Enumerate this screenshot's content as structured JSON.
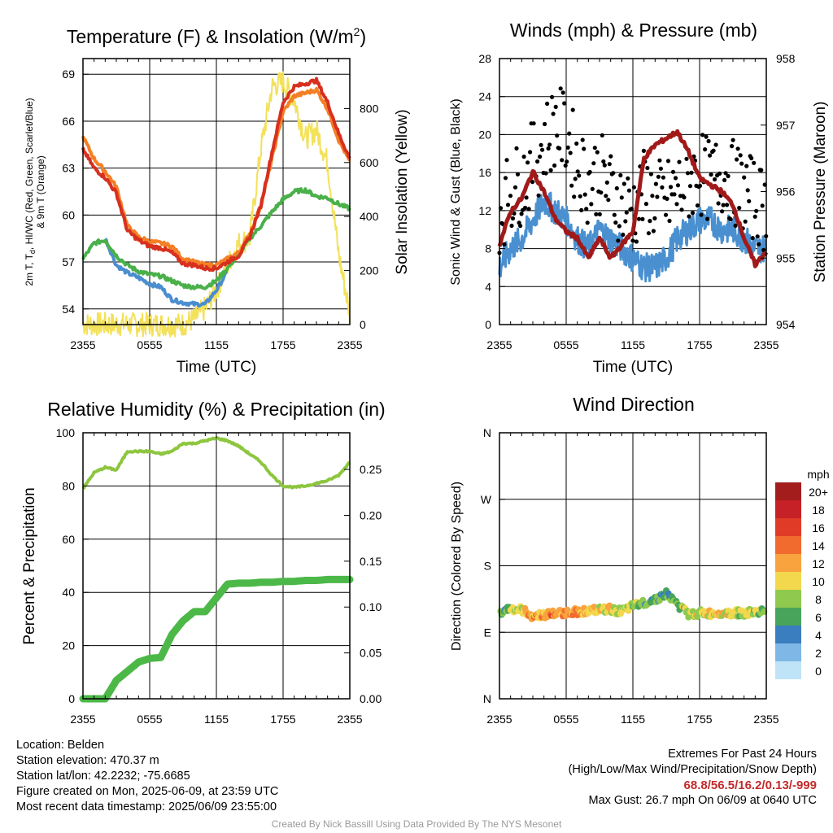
{
  "panels": {
    "temp": {
      "title": "Temperature (F) & Insolation (W/m",
      "title_sup": "2",
      "title_end": ")",
      "ylabel_line1": "2m T, T",
      "ylabel_sub": "d",
      "ylabel_line1_end": ", HI/WC (Red, Green, Scarlet/Blue)",
      "ylabel_line2": "& 9m T (Orange)",
      "y2label": "Solar Insolation (Yellow)",
      "xlabel": "Time (UTC)"
    },
    "wind": {
      "title": "Winds (mph) & Pressure (mb)",
      "ylabel": "Sonic Wind & Gust (Blue, Black)",
      "y2label": "Station Pressure (Maroon)",
      "xlabel": "Time (UTC)"
    },
    "rh": {
      "title": "Relative Humidity (%) & Precipitation (in)",
      "ylabel": "Percent & Precipitation"
    },
    "dir": {
      "title": "Wind Direction",
      "ylabel": "Direction (Colored By Speed)",
      "legend_title": "mph"
    }
  },
  "chart_data": [
    {
      "type": "line",
      "title": "Temperature (F) & Insolation (W/m2)",
      "xlabel": "Time (UTC)",
      "ylabel": "2m T, Td, HI/WC (Red, Green, Scarlet/Blue) & 9m T (Orange)",
      "y2label": "Solar Insolation (Yellow)",
      "x_ticks": [
        "2355",
        "0555",
        "1155",
        "1755",
        "2355"
      ],
      "ylim": [
        53,
        70
      ],
      "y_ticks": [
        54,
        57,
        60,
        63,
        66,
        69
      ],
      "y2lim": [
        0,
        985
      ],
      "y2_ticks": [
        0,
        200,
        400,
        600,
        800
      ],
      "hours": [
        0,
        1,
        2,
        3,
        4,
        5,
        6,
        7,
        8,
        9,
        10,
        11,
        12,
        13,
        14,
        15,
        16,
        17,
        18,
        19,
        20,
        21,
        22,
        23,
        24
      ],
      "series": [
        {
          "key": "temp2m",
          "color": "#d7301f",
          "values": [
            64.2,
            63,
            62.4,
            61.4,
            59,
            58.4,
            58,
            57.9,
            57.6,
            56.9,
            56.8,
            56.6,
            56.6,
            57,
            57.4,
            58.6,
            60.6,
            64,
            67.2,
            68.2,
            68.4,
            68.6,
            67.2,
            65.2,
            63.6
          ]
        },
        {
          "key": "temp9m",
          "color": "#f57f25",
          "values": [
            65,
            63.6,
            62.8,
            61.8,
            59.3,
            58.6,
            58.3,
            58.2,
            58,
            57.2,
            57,
            56.8,
            56.8,
            57.2,
            57.6,
            58.8,
            60.6,
            63.6,
            66.6,
            67.6,
            67.8,
            68,
            66.8,
            64.8,
            63.4
          ]
        },
        {
          "key": "dewpoint",
          "color": "#4ab04a",
          "values": [
            57.2,
            58.2,
            58.4,
            57.4,
            56.8,
            56.4,
            56.2,
            56.1,
            55.8,
            55.5,
            55.4,
            55.4,
            55.8,
            56.6,
            57.5,
            58.5,
            59.3,
            60.2,
            61,
            61.5,
            61.6,
            61.2,
            61.1,
            60.7,
            60.4
          ]
        },
        {
          "key": "heatindex",
          "color": "#4a8ed0",
          "values": [
            null,
            null,
            58.5,
            56.8,
            56.3,
            56,
            55.6,
            55.4,
            54.6,
            54.4,
            54.3,
            54.3,
            55.2,
            56.4,
            null,
            null,
            null,
            null,
            null,
            null,
            null,
            null,
            null,
            null,
            null
          ]
        },
        {
          "key": "solar",
          "color": "#f3e15a",
          "axis": "y2",
          "values": [
            2,
            1,
            1,
            1,
            1,
            0,
            0,
            1,
            0,
            0,
            20,
            60,
            130,
            220,
            300,
            320,
            650,
            880,
            900,
            830,
            690,
            720,
            600,
            260,
            40
          ]
        }
      ]
    },
    {
      "type": "line",
      "title": "Winds (mph) & Pressure (mb)",
      "xlabel": "Time (UTC)",
      "ylabel": "Sonic Wind & Gust (Blue, Black)",
      "y2label": "Station Pressure (Maroon)",
      "x_ticks": [
        "2355",
        "0555",
        "1155",
        "1755",
        "2355"
      ],
      "ylim": [
        0,
        28
      ],
      "y_ticks": [
        0,
        4,
        8,
        12,
        16,
        20,
        24,
        28
      ],
      "y2lim": [
        954,
        958
      ],
      "y2_ticks": [
        954,
        955,
        956,
        957,
        958
      ],
      "hours": [
        0,
        1,
        2,
        3,
        4,
        5,
        6,
        7,
        8,
        9,
        10,
        11,
        12,
        13,
        14,
        15,
        16,
        17,
        18,
        19,
        20,
        21,
        22,
        23,
        24
      ],
      "series": [
        {
          "key": "sonic_wind",
          "color": "#4a90d0",
          "values": [
            6,
            8,
            9,
            11,
            13,
            12,
            11,
            9,
            8,
            10,
            9,
            8,
            7,
            6,
            6,
            7,
            9,
            10,
            11,
            11,
            10,
            10,
            9,
            8,
            8
          ]
        },
        {
          "key": "gust",
          "color": "#000000",
          "values": [
            12,
            14,
            15,
            17,
            19,
            21,
            20,
            17,
            15,
            16,
            14,
            13,
            12,
            14,
            13,
            13,
            14,
            15,
            16,
            15,
            16,
            15,
            14,
            13,
            12
          ]
        },
        {
          "key": "pressure",
          "color": "#a11a1a",
          "axis": "y2",
          "values": [
            955.2,
            955.7,
            955.9,
            956.3,
            956,
            955.6,
            955.4,
            955.3,
            955,
            955.3,
            955,
            955.2,
            955.4,
            956.5,
            956.7,
            956.8,
            956.9,
            956.6,
            956.2,
            956.1,
            956,
            955.8,
            955.3,
            954.9,
            955.1
          ]
        }
      ]
    },
    {
      "type": "line",
      "title": "Relative Humidity (%) & Precipitation (in)",
      "ylabel": "Percent & Precipitation",
      "x_ticks": [
        "2355",
        "0555",
        "1155",
        "1755",
        "2355"
      ],
      "ylim": [
        0,
        100
      ],
      "y_ticks": [
        0,
        20,
        40,
        60,
        80,
        100
      ],
      "y2lim": [
        0,
        0.29
      ],
      "y2_ticks": [
        "0.00",
        "0.05",
        "0.10",
        "0.15",
        "0.20",
        "0.25"
      ],
      "hours": [
        0,
        1,
        2,
        3,
        4,
        5,
        6,
        7,
        8,
        9,
        10,
        11,
        12,
        13,
        14,
        15,
        16,
        17,
        18,
        19,
        20,
        21,
        22,
        23,
        24
      ],
      "series": [
        {
          "key": "rh",
          "color": "#8dc63f",
          "values": [
            79,
            85,
            87,
            86,
            93,
            93,
            93,
            92,
            93,
            96,
            96,
            97,
            98,
            97,
            95,
            92,
            89,
            84,
            80,
            79.5,
            80,
            81,
            82,
            84,
            89
          ]
        },
        {
          "key": "precip",
          "color": "#4cb848",
          "axis": "y2",
          "values": [
            0,
            0,
            0,
            0.02,
            0.03,
            0.04,
            0.044,
            0.045,
            0.07,
            0.085,
            0.095,
            0.095,
            0.11,
            0.125,
            0.126,
            0.126,
            0.127,
            0.127,
            0.128,
            0.128,
            0.129,
            0.129,
            0.13,
            0.13,
            0.13
          ]
        }
      ]
    },
    {
      "type": "scatter",
      "title": "Wind Direction",
      "ylabel": "Direction (Colored By Speed)",
      "x_ticks": [
        "2355",
        "0555",
        "1155",
        "1755",
        "2355"
      ],
      "y_ticks": [
        "N",
        "E",
        "S",
        "W",
        "N"
      ],
      "ylim": [
        0,
        360
      ],
      "legend_title": "mph",
      "legend": [
        {
          "label": "20+",
          "color": "#a31d1d"
        },
        {
          "label": "18",
          "color": "#c62127"
        },
        {
          "label": "16",
          "color": "#e03b27"
        },
        {
          "label": "14",
          "color": "#f26b2e"
        },
        {
          "label": "12",
          "color": "#f8a33e"
        },
        {
          "label": "10",
          "color": "#f3d84e"
        },
        {
          "label": "8",
          "color": "#8fca4e"
        },
        {
          "label": "6",
          "color": "#48a45a"
        },
        {
          "label": "4",
          "color": "#3b7ebf"
        },
        {
          "label": "2",
          "color": "#7fb8e6"
        },
        {
          "label": "0",
          "color": "#bfe3f7"
        }
      ],
      "hours": [
        0,
        1,
        2,
        3,
        4,
        5,
        6,
        7,
        8,
        9,
        10,
        11,
        12,
        13,
        14,
        15,
        16,
        17,
        18,
        19,
        20,
        21,
        22,
        23,
        24
      ],
      "direction_deg": [
        118,
        122,
        120,
        112,
        114,
        115,
        117,
        118,
        119,
        120,
        121,
        118,
        125,
        130,
        135,
        142,
        128,
        114,
        116,
        115,
        117,
        116,
        116,
        117,
        119
      ],
      "speed_mph": [
        6,
        8,
        10,
        12,
        12,
        13,
        13,
        12,
        11,
        11,
        10,
        9,
        8,
        7,
        6,
        6,
        7,
        9,
        10,
        10,
        10,
        9,
        9,
        8,
        8
      ]
    }
  ],
  "footer": {
    "location": "Location: Belden",
    "elevation": "Station elevation: 470.37 m",
    "latlon": "Station lat/lon: 42.2232; -75.6685",
    "created": "Figure created on Mon, 2025-06-09, at 23:59 UTC",
    "recent": "Most recent data timestamp: 2025/06/09 23:55:00",
    "extremes_title": "Extremes For Past 24 Hours",
    "extremes_sub": "(High/Low/Max Wind/Precipitation/Snow Depth)",
    "extremes_values": "68.8/56.5/16.2/0.13/-999",
    "max_gust": "Max Gust: 26.7 mph On 06/09 at 0640 UTC",
    "credit": "Created By Nick Bassill Using Data Provided By The NYS Mesonet"
  }
}
